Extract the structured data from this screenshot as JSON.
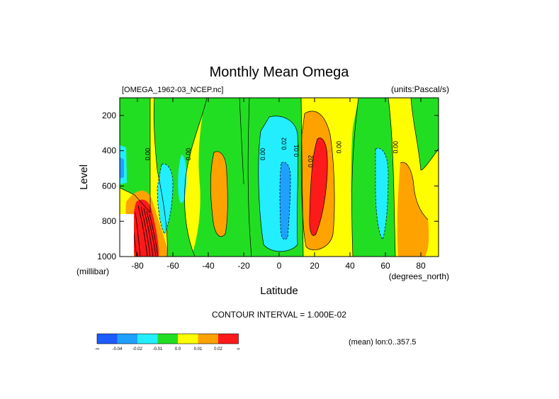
{
  "chart_data": {
    "type": "contour",
    "title": "Monthly Mean Omega",
    "source_label": "[OMEGA_1962-03_NCEP.nc]",
    "units_label": "(units:Pascal/s)",
    "xlabel": "Latitude",
    "ylabel": "Level",
    "y_units": "(millibar)",
    "x_units": "(degrees_north)",
    "xlim": [
      -90,
      90
    ],
    "ylim": [
      1000,
      100
    ],
    "x_ticks": [
      {
        "value": -80,
        "label": "-80"
      },
      {
        "value": -60,
        "label": "-60"
      },
      {
        "value": -40,
        "label": "-40"
      },
      {
        "value": -20,
        "label": "-20"
      },
      {
        "value": 0,
        "label": "0"
      },
      {
        "value": 20,
        "label": "20"
      },
      {
        "value": 40,
        "label": "40"
      },
      {
        "value": 60,
        "label": "60"
      },
      {
        "value": 80,
        "label": "80"
      }
    ],
    "y_ticks": [
      {
        "value": 200,
        "label": "200"
      },
      {
        "value": 400,
        "label": "400"
      },
      {
        "value": 600,
        "label": "600"
      },
      {
        "value": 800,
        "label": "800"
      },
      {
        "value": 1000,
        "label": "1000"
      }
    ],
    "contour_interval_label": "CONTOUR INTERVAL = 1.000E-02",
    "mean_label": "(mean) lon:0..357.5",
    "contour_labels": [
      {
        "lat": -73,
        "level": 420,
        "text": "0.00"
      },
      {
        "lat": -50,
        "level": 420,
        "text": "0.00"
      },
      {
        "lat": -8,
        "level": 420,
        "text": "0.00"
      },
      {
        "lat": 4,
        "level": 360,
        "text": "0.02"
      },
      {
        "lat": 11,
        "level": 400,
        "text": "0.01"
      },
      {
        "lat": 19,
        "level": 460,
        "text": "0.02"
      },
      {
        "lat": 35,
        "level": 380,
        "text": "0.00"
      },
      {
        "lat": 67,
        "level": 380,
        "text": "0.00"
      }
    ],
    "legend": {
      "colors": [
        "#1e5bff",
        "#1fa0ff",
        "#22eefe",
        "#22de22",
        "#fefe00",
        "#fea200",
        "#fe1a1a"
      ],
      "labels": [
        "-∞",
        "-0.04",
        "-0.02",
        "-0.01",
        "0.0",
        "0.01",
        "0.02",
        "∞"
      ]
    },
    "regions": [
      {
        "band": "green",
        "lat_range": [
          -70,
          -53
        ],
        "level_range": [
          100,
          1000
        ]
      },
      {
        "band": "green",
        "lat_range": [
          -45,
          -20
        ],
        "level_range": [
          100,
          1000
        ]
      },
      {
        "band": "cyan",
        "lat_range": [
          -10,
          6
        ],
        "level_range": [
          180,
          980
        ]
      },
      {
        "band": "blue",
        "lat_range": [
          1,
          6
        ],
        "level_range": [
          320,
          900
        ]
      },
      {
        "band": "orange",
        "lat_range": [
          10,
          33
        ],
        "level_range": [
          120,
          990
        ]
      },
      {
        "band": "red",
        "lat_range": [
          16,
          28
        ],
        "level_range": [
          220,
          860
        ]
      },
      {
        "band": "green",
        "lat_range": [
          37,
          62
        ],
        "level_range": [
          100,
          1000
        ]
      },
      {
        "band": "orange",
        "lat_range": [
          65,
          87
        ],
        "level_range": [
          300,
          1000
        ]
      }
    ]
  }
}
